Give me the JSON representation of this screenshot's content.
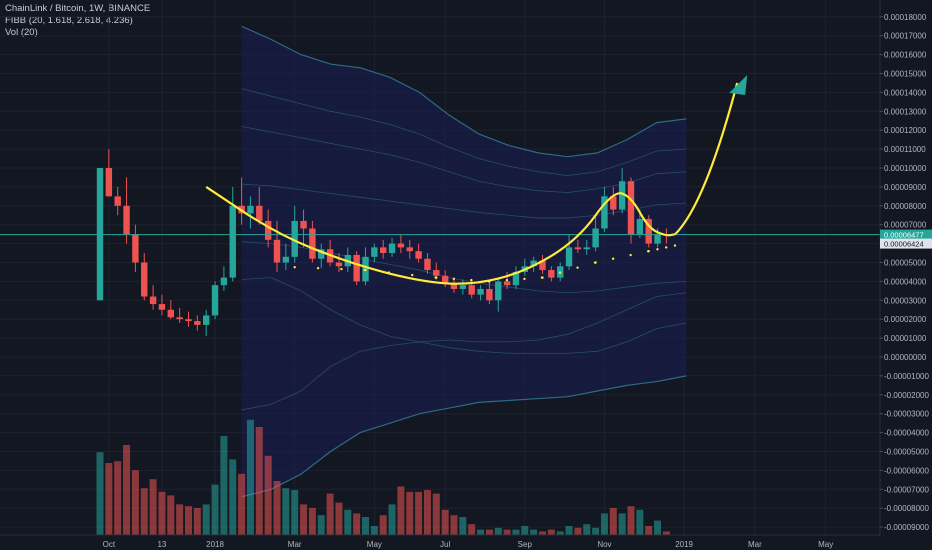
{
  "legend": {
    "symbol": "ChainLink / Bitcoin, 1W, BINANCE",
    "fibb": "FIBB (20, 1.618, 2.618, 4.236)",
    "vol": "Vol (20)"
  },
  "colors": {
    "background": "#131722",
    "up": "#26a69a",
    "down": "#ef5350",
    "band_fill": "#1a1d52",
    "band_line": "#2f6f8a",
    "annotation": "#ffeb3b",
    "arrow": "#26a69a",
    "price_line": "#26a69a"
  },
  "chart_data": {
    "type": "candlestick",
    "y_axis": {
      "ticks": [
        "0.00018000",
        "0.00017000",
        "0.00016000",
        "0.00015000",
        "0.00014000",
        "0.00013000",
        "0.00012000",
        "0.00011000",
        "0.00010000",
        "0.00009000",
        "0.00008000",
        "0.00007000",
        "0.00006000",
        "0.00005000",
        "0.00004000",
        "0.00003000",
        "0.00002000",
        "0.00001000",
        "0.00000000",
        "-0.00001000",
        "-0.00002000",
        "-0.00003000",
        "-0.00004000",
        "-0.00005000",
        "-0.00006000",
        "-0.00007000",
        "-0.00008000",
        "-0.00009000"
      ]
    },
    "x_axis": {
      "ticks": [
        {
          "label": "Oct",
          "week": 1
        },
        {
          "label": "13",
          "week": 7
        },
        {
          "label": "2018",
          "week": 13
        },
        {
          "label": "Mar",
          "week": 22
        },
        {
          "label": "May",
          "week": 31
        },
        {
          "label": "Jul",
          "week": 39
        },
        {
          "label": "Sep",
          "week": 48
        },
        {
          "label": "Nov",
          "week": 57
        },
        {
          "label": "2019",
          "week": 66
        },
        {
          "label": "Mar",
          "week": 74
        },
        {
          "label": "May",
          "week": 82
        }
      ]
    },
    "candles": [
      {
        "o": 3e-05,
        "h": 0.0001,
        "l": 3e-05,
        "c": 0.0001
      },
      {
        "o": 0.0001,
        "h": 0.00011,
        "l": 8.5e-05,
        "c": 8.5e-05
      },
      {
        "o": 8.5e-05,
        "h": 9e-05,
        "l": 7.5e-05,
        "c": 8e-05
      },
      {
        "o": 8e-05,
        "h": 9.5e-05,
        "l": 6e-05,
        "c": 6.5e-05
      },
      {
        "o": 6.5e-05,
        "h": 7e-05,
        "l": 4.5e-05,
        "c": 5e-05
      },
      {
        "o": 5e-05,
        "h": 5.5e-05,
        "l": 3e-05,
        "c": 3.2e-05
      },
      {
        "o": 3.2e-05,
        "h": 3.8e-05,
        "l": 2.5e-05,
        "c": 2.8e-05
      },
      {
        "o": 2.8e-05,
        "h": 3.3e-05,
        "l": 2.2e-05,
        "c": 2.5e-05
      },
      {
        "o": 2.5e-05,
        "h": 3e-05,
        "l": 2e-05,
        "c": 2.1e-05
      },
      {
        "o": 2.1e-05,
        "h": 2.6e-05,
        "l": 1.8e-05,
        "c": 2e-05
      },
      {
        "o": 2e-05,
        "h": 2.4e-05,
        "l": 1.6e-05,
        "c": 1.9e-05
      },
      {
        "o": 1.9e-05,
        "h": 2.2e-05,
        "l": 1.4e-05,
        "c": 1.7e-05
      },
      {
        "o": 1.7e-05,
        "h": 2.5e-05,
        "l": 1.1e-05,
        "c": 2.2e-05
      },
      {
        "o": 2.2e-05,
        "h": 4e-05,
        "l": 2e-05,
        "c": 3.8e-05
      },
      {
        "o": 3.8e-05,
        "h": 4.8e-05,
        "l": 3.5e-05,
        "c": 4.2e-05
      },
      {
        "o": 4.2e-05,
        "h": 9e-05,
        "l": 4e-05,
        "c": 8e-05
      },
      {
        "o": 8e-05,
        "h": 9.5e-05,
        "l": 7e-05,
        "c": 7.6e-05
      },
      {
        "o": 7.6e-05,
        "h": 8.5e-05,
        "l": 6.8e-05,
        "c": 8e-05
      },
      {
        "o": 8e-05,
        "h": 9e-05,
        "l": 7e-05,
        "c": 7.2e-05
      },
      {
        "o": 7.2e-05,
        "h": 7.8e-05,
        "l": 5.8e-05,
        "c": 6.2e-05
      },
      {
        "o": 6.2e-05,
        "h": 7.2e-05,
        "l": 4.5e-05,
        "c": 5e-05
      },
      {
        "o": 5e-05,
        "h": 6e-05,
        "l": 4.6e-05,
        "c": 5.3e-05
      },
      {
        "o": 5.3e-05,
        "h": 8e-05,
        "l": 5e-05,
        "c": 7.2e-05
      },
      {
        "o": 7.2e-05,
        "h": 7.8e-05,
        "l": 5.8e-05,
        "c": 6.8e-05
      },
      {
        "o": 6.8e-05,
        "h": 7.2e-05,
        "l": 5e-05,
        "c": 5.2e-05
      },
      {
        "o": 5.2e-05,
        "h": 6e-05,
        "l": 4.7e-05,
        "c": 5.7e-05
      },
      {
        "o": 5.7e-05,
        "h": 6.2e-05,
        "l": 4.8e-05,
        "c": 5e-05
      },
      {
        "o": 5e-05,
        "h": 5.5e-05,
        "l": 4.5e-05,
        "c": 4.8e-05
      },
      {
        "o": 4.8e-05,
        "h": 5.8e-05,
        "l": 4.5e-05,
        "c": 5.4e-05
      },
      {
        "o": 5.4e-05,
        "h": 5.6e-05,
        "l": 3.8e-05,
        "c": 4e-05
      },
      {
        "o": 4e-05,
        "h": 5.8e-05,
        "l": 3.8e-05,
        "c": 5.3e-05
      },
      {
        "o": 5.3e-05,
        "h": 6e-05,
        "l": 5e-05,
        "c": 5.8e-05
      },
      {
        "o": 5.8e-05,
        "h": 6.2e-05,
        "l": 5.2e-05,
        "c": 5.5e-05
      },
      {
        "o": 5.5e-05,
        "h": 6.3e-05,
        "l": 5.3e-05,
        "c": 6e-05
      },
      {
        "o": 6e-05,
        "h": 6.5e-05,
        "l": 5.5e-05,
        "c": 5.8e-05
      },
      {
        "o": 5.8e-05,
        "h": 6.2e-05,
        "l": 5.2e-05,
        "c": 5.6e-05
      },
      {
        "o": 5.6e-05,
        "h": 6e-05,
        "l": 5e-05,
        "c": 5.2e-05
      },
      {
        "o": 5.2e-05,
        "h": 5.5e-05,
        "l": 4.4e-05,
        "c": 4.6e-05
      },
      {
        "o": 4.6e-05,
        "h": 5e-05,
        "l": 4.1e-05,
        "c": 4.3e-05
      },
      {
        "o": 4.3e-05,
        "h": 4.6e-05,
        "l": 3.7e-05,
        "c": 3.9e-05
      },
      {
        "o": 3.9e-05,
        "h": 4.2e-05,
        "l": 3.4e-05,
        "c": 3.6e-05
      },
      {
        "o": 3.6e-05,
        "h": 4.1e-05,
        "l": 3.3e-05,
        "c": 3.8e-05
      },
      {
        "o": 3.8e-05,
        "h": 4e-05,
        "l": 3.1e-05,
        "c": 3.3e-05
      },
      {
        "o": 3.3e-05,
        "h": 3.8e-05,
        "l": 3e-05,
        "c": 3.6e-05
      },
      {
        "o": 3.6e-05,
        "h": 4e-05,
        "l": 2.8e-05,
        "c": 3e-05
      },
      {
        "o": 3e-05,
        "h": 4.2e-05,
        "l": 2.4e-05,
        "c": 4e-05
      },
      {
        "o": 4e-05,
        "h": 4.5e-05,
        "l": 3.6e-05,
        "c": 3.8e-05
      },
      {
        "o": 3.8e-05,
        "h": 4.8e-05,
        "l": 3.6e-05,
        "c": 4.5e-05
      },
      {
        "o": 4.5e-05,
        "h": 5.2e-05,
        "l": 4.3e-05,
        "c": 4.8e-05
      },
      {
        "o": 4.8e-05,
        "h": 5.3e-05,
        "l": 4.5e-05,
        "c": 5.1e-05
      },
      {
        "o": 5.1e-05,
        "h": 5.4e-05,
        "l": 4.4e-05,
        "c": 4.6e-05
      },
      {
        "o": 4.6e-05,
        "h": 4.8e-05,
        "l": 4e-05,
        "c": 4.2e-05
      },
      {
        "o": 4.2e-05,
        "h": 5e-05,
        "l": 4e-05,
        "c": 4.8e-05
      },
      {
        "o": 4.8e-05,
        "h": 6.5e-05,
        "l": 4.6e-05,
        "c": 5.8e-05
      },
      {
        "o": 5.8e-05,
        "h": 6.2e-05,
        "l": 5.5e-05,
        "c": 5.7e-05
      },
      {
        "o": 5.7e-05,
        "h": 6.2e-05,
        "l": 5.4e-05,
        "c": 5.8e-05
      },
      {
        "o": 5.8e-05,
        "h": 7.5e-05,
        "l": 5.6e-05,
        "c": 6.8e-05
      },
      {
        "o": 6.8e-05,
        "h": 9e-05,
        "l": 6.6e-05,
        "c": 8.5e-05
      },
      {
        "o": 8.5e-05,
        "h": 9e-05,
        "l": 7.5e-05,
        "c": 7.8e-05
      },
      {
        "o": 7.8e-05,
        "h": 0.0001,
        "l": 7.6e-05,
        "c": 9.3e-05
      },
      {
        "o": 9.3e-05,
        "h": 9.5e-05,
        "l": 6e-05,
        "c": 6.5e-05
      },
      {
        "o": 6.5e-05,
        "h": 7.8e-05,
        "l": 6.3e-05,
        "c": 7.3e-05
      },
      {
        "o": 7.3e-05,
        "h": 7.5e-05,
        "l": 5.8e-05,
        "c": 6e-05
      },
      {
        "o": 6e-05,
        "h": 6.8e-05,
        "l": 5.8e-05,
        "c": 6.5e-05
      },
      {
        "o": 6.5e-05,
        "h": 6.8e-05,
        "l": 6e-05,
        "c": 6.477e-05
      }
    ],
    "volume": [
      46,
      40,
      41,
      50,
      36,
      26,
      31,
      24,
      22,
      17,
      16,
      15,
      17,
      28,
      55,
      42,
      34,
      64,
      60,
      44,
      30,
      26,
      25,
      17,
      15,
      11,
      23,
      18,
      14,
      12,
      10,
      5,
      11,
      17,
      27,
      24,
      24,
      25,
      23,
      14,
      11,
      10,
      6,
      3,
      3,
      4,
      3,
      3,
      5,
      3,
      2,
      3,
      2,
      5,
      4,
      6,
      4,
      12,
      15,
      12,
      16,
      14,
      5,
      8,
      2
    ],
    "fib_bands": {
      "start_week": 16,
      "upper3": [
        0.000175,
        0.000168,
        0.00016,
        0.000155,
        0.000153,
        0.000148,
        0.00014,
        0.000128,
        0.000118,
        0.000112,
        0.000108,
        0.000106,
        0.000108,
        0.000115,
        0.000124,
        0.000126
      ],
      "upper2": [
        0.000142,
        0.000138,
        0.000134,
        0.00013,
        0.000127,
        0.000123,
        0.000118,
        0.000111,
        0.000105,
        0.000101,
        9.8e-05,
        9.6e-05,
        9.8e-05,
        0.000103,
        0.000109,
        0.00011
      ],
      "upper1": [
        0.000122,
        0.000119,
        0.000116,
        0.000113,
        0.00011,
        0.000107,
        0.000103,
        9.8e-05,
        9.3e-05,
        9e-05,
        8.8e-05,
        8.7e-05,
        8.9e-05,
        9.2e-05,
        9.7e-05,
        9.8e-05
      ],
      "basis": [
        9.15e-05,
        9.05e-05,
        8.85e-05,
        8.65e-05,
        8.45e-05,
        8.25e-05,
        8.05e-05,
        7.85e-05,
        7.65e-05,
        7.5e-05,
        7.35e-05,
        7.35e-05,
        7.5e-05,
        7.75e-05,
        8.05e-05,
        8.15e-05
      ],
      "lower1": [
        6.1e-05,
        6e-05,
        5.8e-05,
        5.5e-05,
        5.2e-05,
        4.9e-05,
        4.6e-05,
        4.2e-05,
        3.9e-05,
        3.7e-05,
        3.5e-05,
        3.4e-05,
        3.5e-05,
        3.7e-05,
        3.9e-05,
        4e-05
      ],
      "lower2": [
        4.1e-05,
        4.2e-05,
        3.5e-05,
        2.5e-05,
        1.7e-05,
        1.1e-05,
        8e-06,
        5e-06,
        3e-06,
        2e-06,
        2e-06,
        2e-06,
        3e-06,
        8e-06,
        1.5e-05,
        1.8e-05
      ],
      "lower3": [
        -2.8e-05,
        -2.5e-05,
        -1.8e-05,
        -5e-06,
        3e-06,
        6e-06,
        8e-06,
        9e-06,
        8e-06,
        8e-06,
        9e-06,
        1.2e-05,
        1.8e-05,
        2.5e-05,
        3.2e-05,
        3.4e-05
      ],
      "lower4": [
        -7.4e-05,
        -7e-05,
        -6.2e-05,
        -5e-05,
        -4e-05,
        -3.5e-05,
        -3e-05,
        -2.7e-05,
        -2.4e-05,
        -2.3e-05,
        -2.2e-05,
        -2.1e-05,
        -1.8e-05,
        -1.5e-05,
        -1.3e-05,
        -1e-05
      ]
    },
    "current_price": {
      "value": 6.477e-05,
      "label": "0.00006477"
    },
    "secondary_price": {
      "value": 6.424e-05,
      "label": "0.00006424"
    },
    "annotation": {
      "cup_curve": [
        [
          12,
          9e-05
        ],
        [
          20,
          6.5e-05
        ],
        [
          28,
          5e-05
        ],
        [
          36,
          4e-05
        ],
        [
          42,
          3.8e-05
        ],
        [
          48,
          4.5e-05
        ],
        [
          54,
          6.2e-05
        ],
        [
          58,
          8.8e-05
        ],
        [
          60,
          8.5e-05
        ],
        [
          62,
          6.8e-05
        ],
        [
          64,
          6.4e-05
        ],
        [
          65,
          6.5e-05
        ]
      ],
      "arrow": [
        [
          65,
          6.5e-05
        ],
        [
          72,
          0.000145
        ]
      ]
    }
  }
}
